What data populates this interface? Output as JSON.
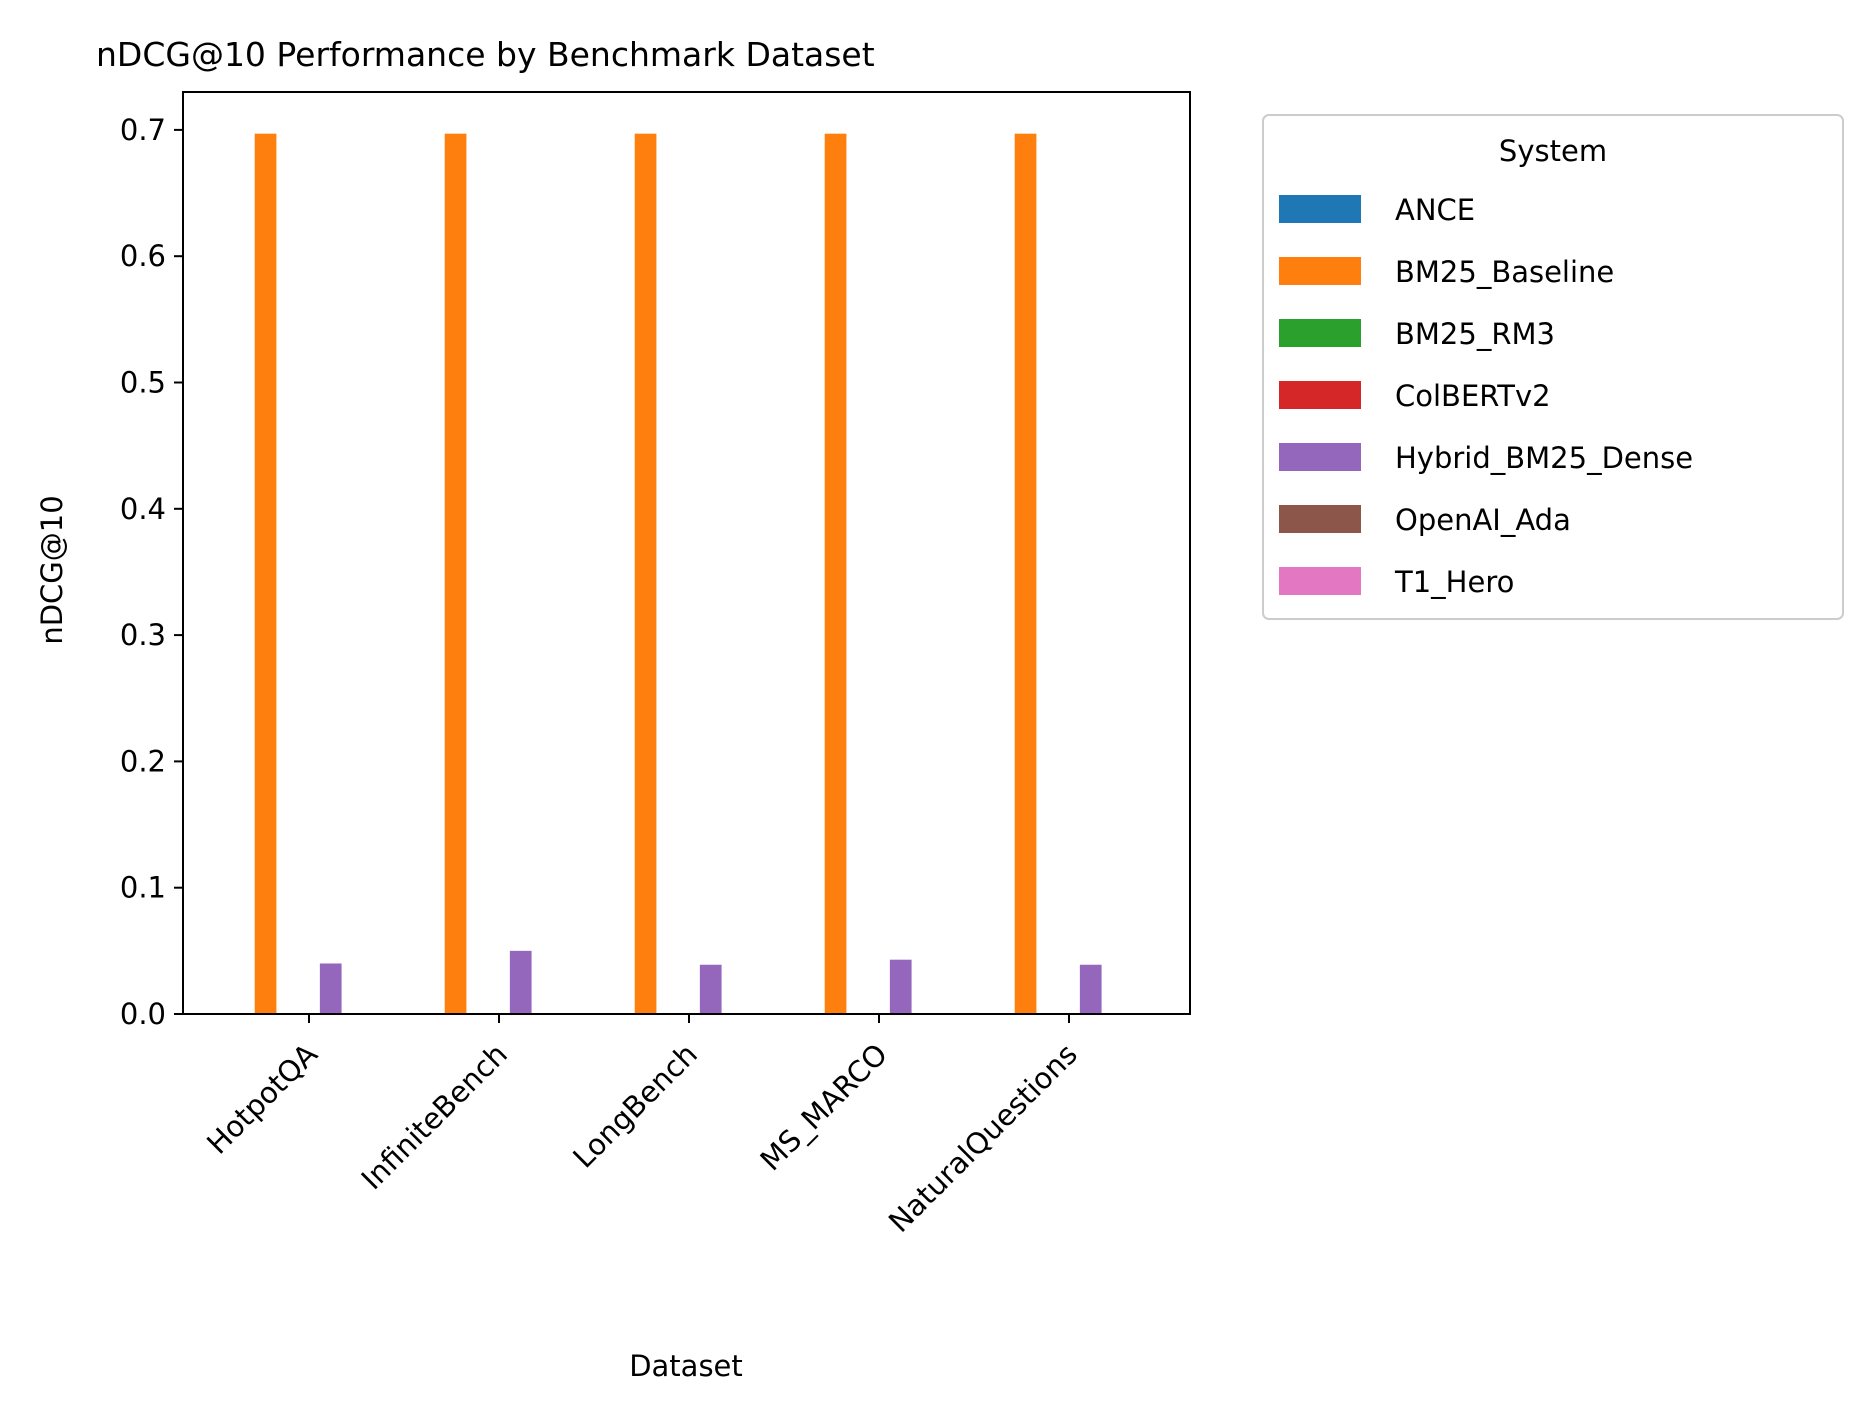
{
  "chart_data": {
    "type": "bar",
    "title": "nDCG@10 Performance by Benchmark Dataset",
    "xlabel": "Dataset",
    "ylabel": "nDCG@10",
    "ylim": [
      0,
      0.73
    ],
    "yticks": [
      0.0,
      0.1,
      0.2,
      0.3,
      0.4,
      0.5,
      0.6,
      0.7
    ],
    "grid": false,
    "categories": [
      "HotpotQA",
      "InfiniteBench",
      "LongBench",
      "MS_MARCO",
      "NaturalQuestions"
    ],
    "legend": {
      "title": "System",
      "placement": "outside-right"
    },
    "series": [
      {
        "name": "ANCE",
        "color": "#1f77b4",
        "values": [
          0,
          0,
          0,
          0,
          0
        ]
      },
      {
        "name": "BM25_Baseline",
        "color": "#ff7f0e",
        "values": [
          0.697,
          0.697,
          0.697,
          0.697,
          0.697
        ]
      },
      {
        "name": "BM25_RM3",
        "color": "#2ca02c",
        "values": [
          0,
          0,
          0,
          0,
          0
        ]
      },
      {
        "name": "ColBERTv2",
        "color": "#d62728",
        "values": [
          0,
          0,
          0,
          0,
          0
        ]
      },
      {
        "name": "Hybrid_BM25_Dense",
        "color": "#9467bd",
        "values": [
          0.04,
          0.05,
          0.039,
          0.043,
          0.039
        ]
      },
      {
        "name": "OpenAI_Ada",
        "color": "#8c564b",
        "values": [
          0,
          0,
          0,
          0,
          0
        ]
      },
      {
        "name": "T1_Hero",
        "color": "#e377c2",
        "values": [
          0,
          0,
          0,
          0,
          0
        ]
      }
    ]
  }
}
